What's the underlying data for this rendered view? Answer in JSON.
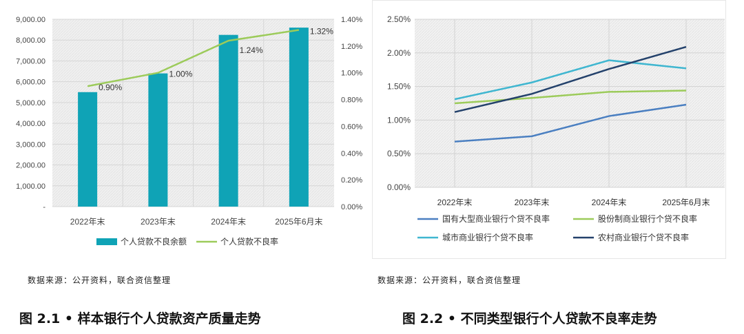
{
  "chart_data": [
    {
      "type": "bar+line",
      "categories": [
        "2022年末",
        "2023年末",
        "2024年末",
        "2025年6月末"
      ],
      "series": [
        {
          "name": "个人贷款不良余额",
          "type": "bar",
          "axis": "left",
          "values": [
            5500,
            6400,
            8250,
            8600
          ]
        },
        {
          "name": "个人贷款不良率",
          "type": "line",
          "axis": "right",
          "values": [
            0.9,
            1.0,
            1.24,
            1.32
          ],
          "labels": [
            "0.90%",
            "1.00%",
            "1.24%",
            "1.32%"
          ]
        }
      ],
      "ylim_left": [
        0,
        9000
      ],
      "yticks_left": [
        "-",
        "1,000.00",
        "2,000.00",
        "3,000.00",
        "4,000.00",
        "5,000.00",
        "6,000.00",
        "7,000.00",
        "8,000.00",
        "9,000.00"
      ],
      "ylim_right": [
        0,
        1.4
      ],
      "yticks_right": [
        "0.00%",
        "0.20%",
        "0.40%",
        "0.60%",
        "0.80%",
        "1.00%",
        "1.20%",
        "1.40%"
      ],
      "colors": {
        "bar": "#0fa3b6",
        "line": "#9ccb5a"
      },
      "legend_position": "bottom"
    },
    {
      "type": "line",
      "categories": [
        "2022年末",
        "2023年末",
        "2024年末",
        "2025年6月末"
      ],
      "series": [
        {
          "name": "国有大型商业银行个贷不良率",
          "values": [
            0.68,
            0.76,
            1.06,
            1.23
          ],
          "color": "#4a7fc1"
        },
        {
          "name": "股份制商业银行个贷不良率",
          "values": [
            1.25,
            1.33,
            1.42,
            1.44
          ],
          "color": "#9ccb5a"
        },
        {
          "name": "城市商业银行个贷不良率",
          "values": [
            1.31,
            1.56,
            1.89,
            1.77
          ],
          "color": "#3fb6d0"
        },
        {
          "name": "农村商业银行个贷不良率",
          "values": [
            1.12,
            1.39,
            1.76,
            2.09
          ],
          "color": "#23416b"
        }
      ],
      "ylim": [
        0,
        2.5
      ],
      "yticks": [
        "0.00%",
        "0.50%",
        "1.00%",
        "1.50%",
        "2.00%",
        "2.50%"
      ],
      "legend_position": "bottom"
    }
  ],
  "figure1": {
    "source": "数据来源：公开资料，联合资信整理",
    "caption": "图 2.1 • 样本银行个人贷款资产质量走势"
  },
  "figure2": {
    "source": "数据来源：公开资料，联合资信整理",
    "caption": "图 2.2 • 不同类型银行个人贷款不良率走势"
  }
}
